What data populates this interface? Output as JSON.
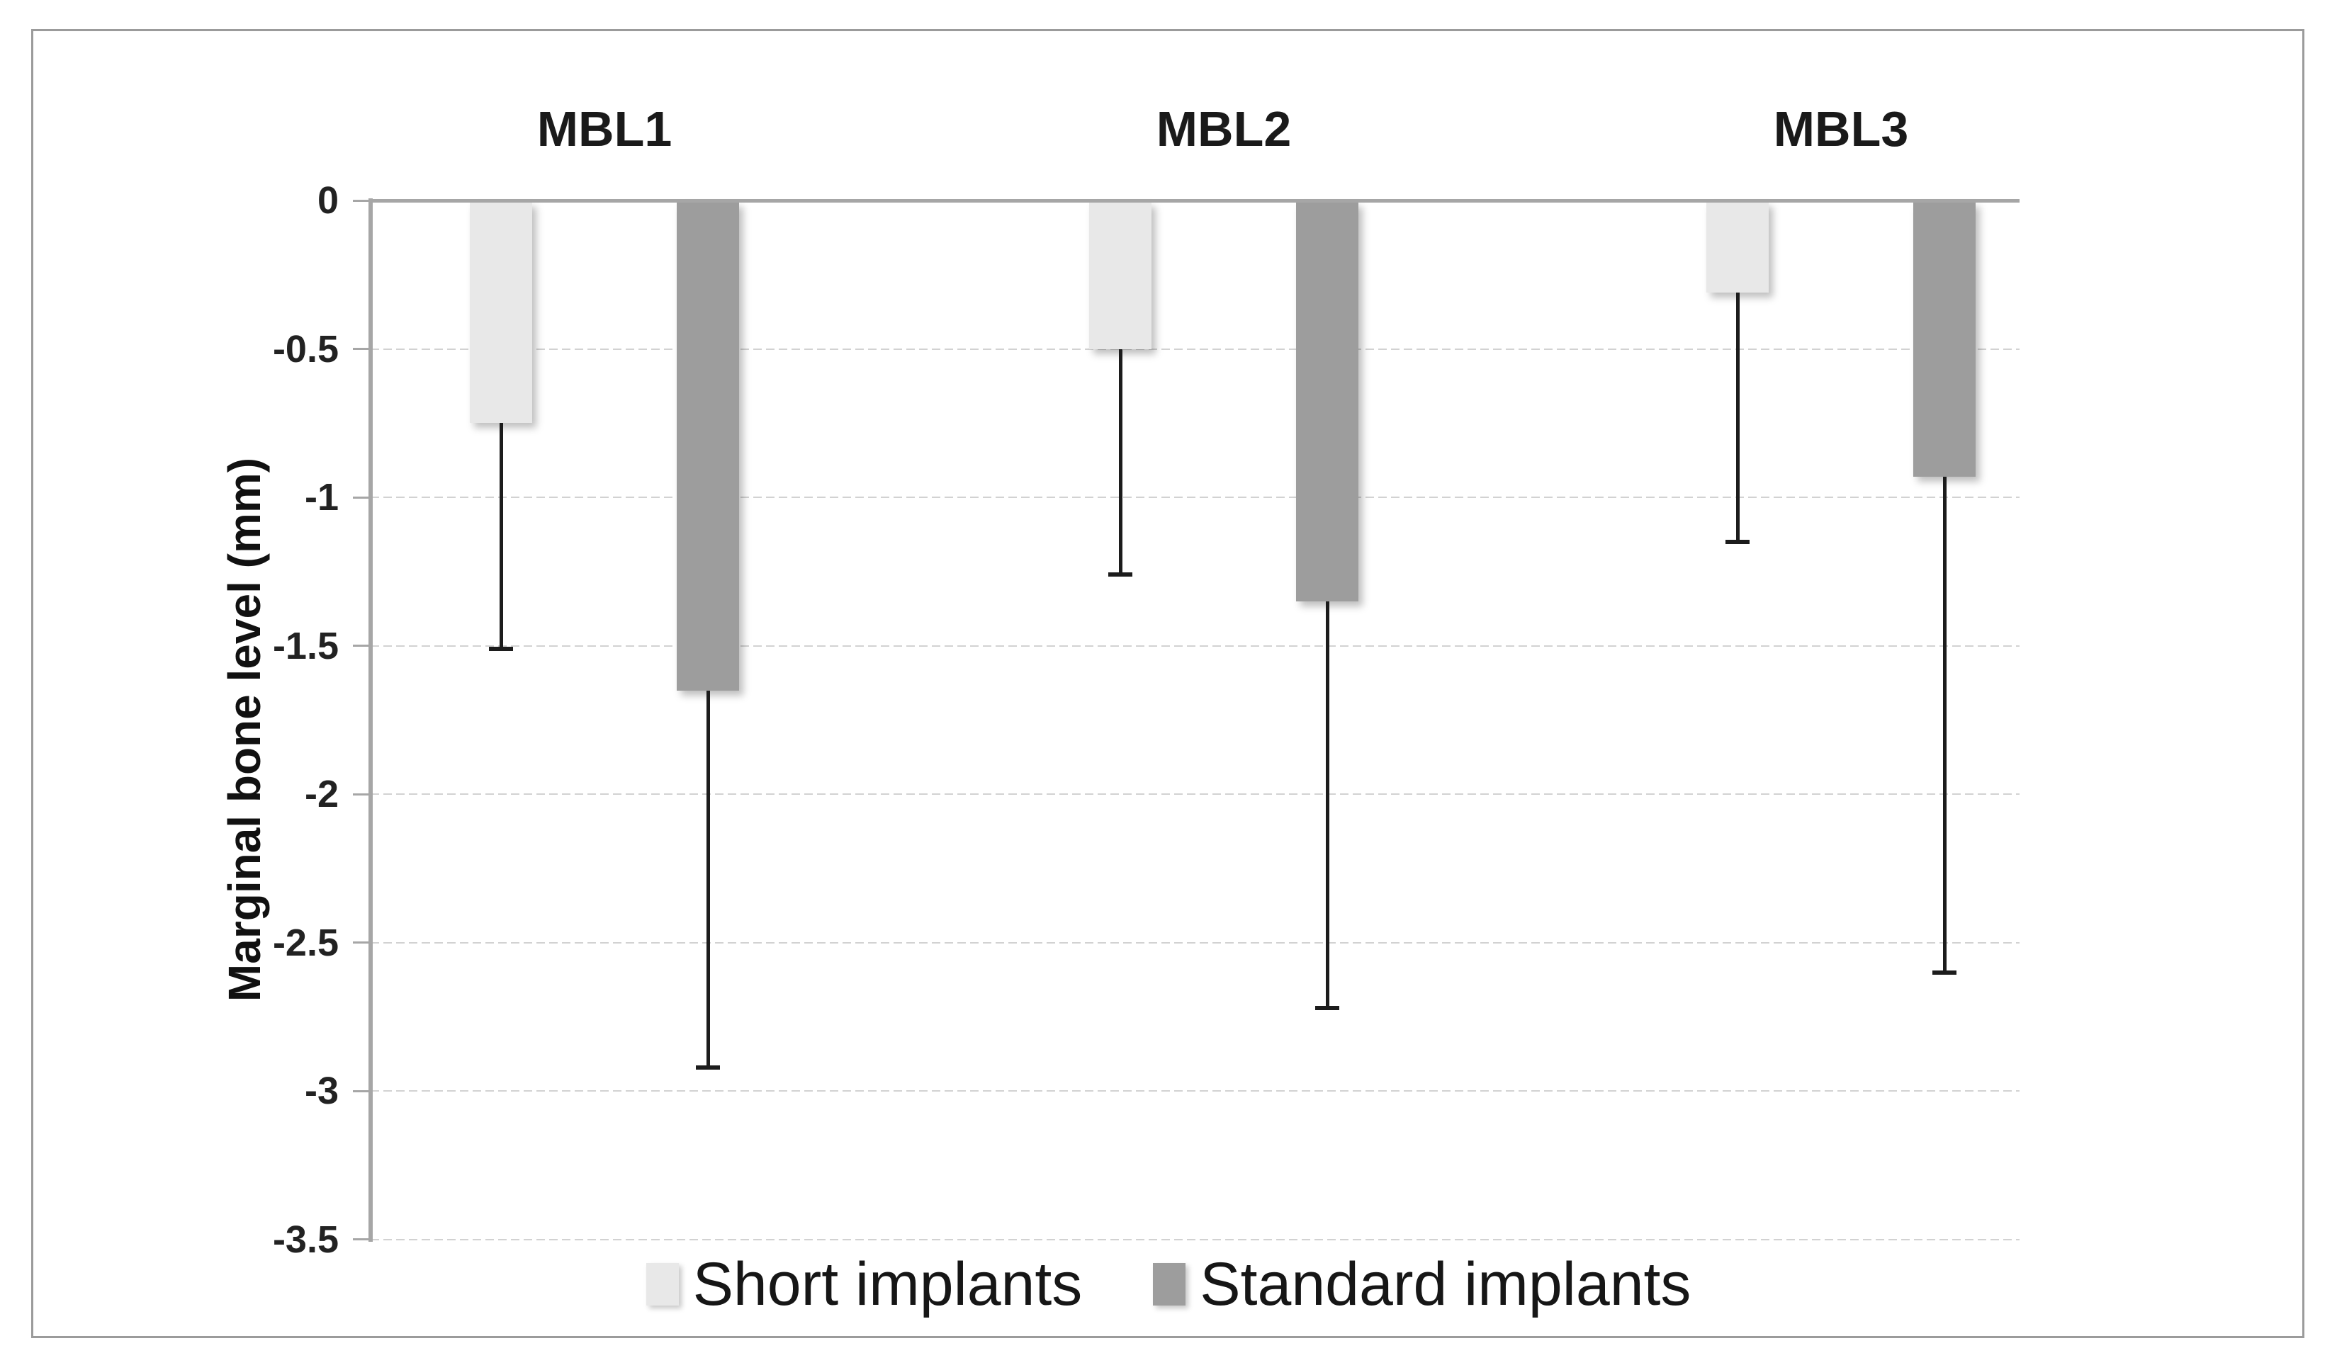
{
  "chart_data": {
    "type": "bar",
    "orientation": "vertical-negative",
    "categories": [
      "MBL1",
      "MBL2",
      "MBL3"
    ],
    "series": [
      {
        "name": "Short implants",
        "color": "#e8e8e8",
        "values": [
          -0.75,
          -0.5,
          -0.31
        ],
        "sd": [
          0.76,
          0.76,
          0.84
        ],
        "whisker_ends": [
          -1.51,
          -1.26,
          -1.15
        ]
      },
      {
        "name": "Standard implants",
        "color": "#9d9d9d",
        "values": [
          -1.65,
          -1.35,
          -0.93
        ],
        "sd": [
          1.27,
          1.37,
          1.67
        ],
        "whisker_ends": [
          -2.92,
          -2.72,
          -2.6
        ]
      }
    ],
    "title": "",
    "xlabel": "",
    "ylabel": "Marginal bone level (mm)",
    "ylim": [
      0,
      -3.5
    ],
    "yticks": [
      0,
      -0.5,
      -1,
      -1.5,
      -2,
      -2.5,
      -3,
      -3.5
    ],
    "ytick_labels": [
      "0",
      "-0.5",
      "-1",
      "-1.5",
      "-2",
      "-2.5",
      "-3",
      "-3.5"
    ],
    "grid": "horizontal-light-dashed",
    "error_bars": "minus 1 SD with end caps",
    "legend_position": "bottom-center",
    "colors": {
      "axis_line": "#a6a6a6",
      "gridline": "#d2d2d2",
      "whisker": "#1c1c1c",
      "frame_border": "#9b9b9b",
      "text": "#1f1f1f"
    }
  }
}
